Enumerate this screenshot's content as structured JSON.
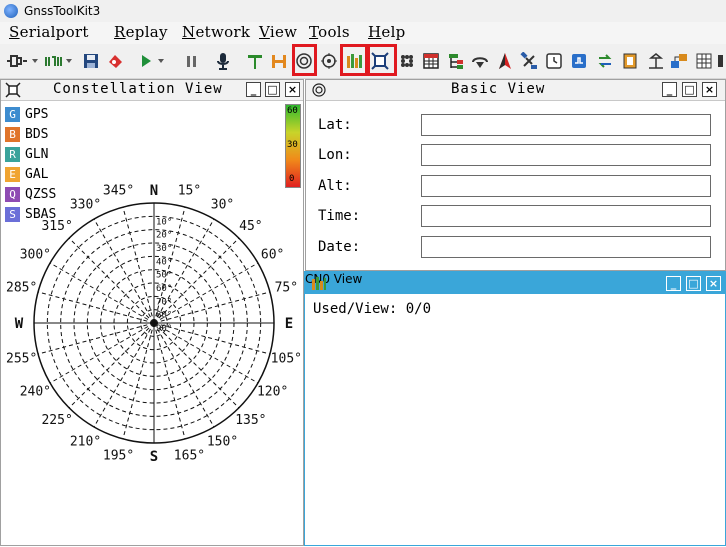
{
  "window": {
    "title": "GnssToolKit3"
  },
  "menu": [
    "Serialport",
    "Replay",
    "Network",
    "View",
    "Tools",
    "Help"
  ],
  "toolbar": {
    "icons": [
      "plug-menu-icon",
      "waveform-menu-icon",
      "save-icon",
      "erase-icon",
      "play-menu-icon",
      "pause-icon",
      "microphone-icon",
      "T-icon",
      "H-icon",
      "basic-view-icon",
      "target-icon",
      "cn0-view-icon",
      "constellation-view-icon",
      "dots-icon",
      "table-icon",
      "tree-icon",
      "download-icon",
      "north-arrow-icon",
      "satellite-icon",
      "clock-icon",
      "pps-icon",
      "swap-icon",
      "film-icon",
      "antenna-icon",
      "network-icon",
      "grid-icon"
    ]
  },
  "constellation": {
    "title": "Constellation View",
    "systems": [
      {
        "code": "G",
        "name": "GPS",
        "color": "#3d8ccf"
      },
      {
        "code": "B",
        "name": "BDS",
        "color": "#e0742a"
      },
      {
        "code": "R",
        "name": "GLN",
        "color": "#3aa39b"
      },
      {
        "code": "E",
        "name": "GAL",
        "color": "#f0a431"
      },
      {
        "code": "Q",
        "name": "QZSS",
        "color": "#8e4bb3"
      },
      {
        "code": "S",
        "name": "SBAS",
        "color": "#6b6fd8"
      }
    ],
    "scale": {
      "top": "60",
      "mid": "30",
      "bottom": "0"
    },
    "cardinals": {
      "n": "N",
      "e": "E",
      "s": "S",
      "w": "W"
    },
    "azimuths": [
      "15°",
      "30°",
      "45°",
      "60°",
      "75°",
      "105°",
      "120°",
      "135°",
      "150°",
      "165°",
      "195°",
      "210°",
      "225°",
      "240°",
      "255°",
      "285°",
      "300°",
      "315°",
      "330°",
      "345°"
    ],
    "elevations": [
      "10°",
      "20°",
      "30°",
      "40°",
      "50°",
      "60°",
      "70°",
      "80°",
      "90°"
    ]
  },
  "basic": {
    "title": "Basic View",
    "fields": [
      {
        "label": "Lat:",
        "value": ""
      },
      {
        "label": "Lon:",
        "value": ""
      },
      {
        "label": "Alt:",
        "value": ""
      },
      {
        "label": "Time:",
        "value": ""
      },
      {
        "label": "Date:",
        "value": ""
      }
    ]
  },
  "cn0": {
    "title": "CN0 View",
    "used_view": "Used/View: 0/0"
  },
  "colors": {
    "highlight": "#e0191f",
    "cno_header": "#3aa6d9"
  }
}
